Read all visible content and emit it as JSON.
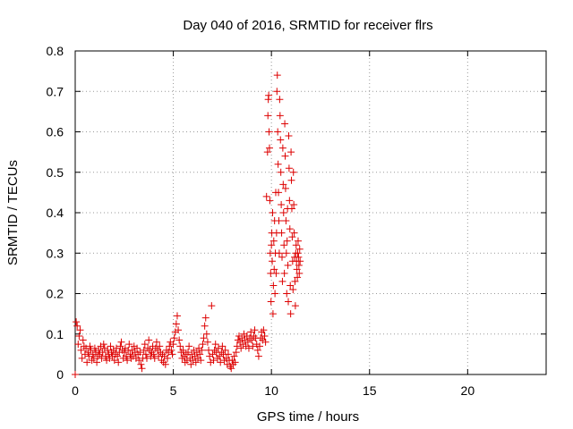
{
  "chart_data": {
    "type": "scatter",
    "title": "Day 040 of 2016, SRMTID for receiver flrs",
    "xlabel": "GPS time / hours",
    "ylabel": "SRMTID / TECUs",
    "xlim": [
      0,
      24
    ],
    "ylim": [
      0,
      0.8
    ],
    "xticks": [
      0,
      5,
      10,
      15,
      20
    ],
    "yticks": [
      0,
      0.1,
      0.2,
      0.3,
      0.4,
      0.5,
      0.6,
      0.7,
      0.8
    ],
    "grid": true,
    "marker": "+",
    "color": "#dd0000",
    "series": [
      {
        "name": "SRMTID",
        "points": [
          [
            0.0,
            0.0
          ],
          [
            0.05,
            0.13
          ],
          [
            0.1,
            0.12
          ],
          [
            0.15,
            0.075
          ],
          [
            0.2,
            0.095
          ],
          [
            0.25,
            0.11
          ],
          [
            0.3,
            0.06
          ],
          [
            0.35,
            0.04
          ],
          [
            0.4,
            0.085
          ],
          [
            0.45,
            0.07
          ],
          [
            0.5,
            0.05
          ],
          [
            0.55,
            0.065
          ],
          [
            0.6,
            0.03
          ],
          [
            0.65,
            0.055
          ],
          [
            0.7,
            0.045
          ],
          [
            0.75,
            0.07
          ],
          [
            0.8,
            0.06
          ],
          [
            0.85,
            0.035
          ],
          [
            0.9,
            0.05
          ],
          [
            0.95,
            0.04
          ],
          [
            1.0,
            0.065
          ],
          [
            1.05,
            0.055
          ],
          [
            1.1,
            0.03
          ],
          [
            1.15,
            0.045
          ],
          [
            1.2,
            0.06
          ],
          [
            1.25,
            0.05
          ],
          [
            1.3,
            0.07
          ],
          [
            1.35,
            0.04
          ],
          [
            1.4,
            0.055
          ],
          [
            1.45,
            0.075
          ],
          [
            1.5,
            0.065
          ],
          [
            1.55,
            0.045
          ],
          [
            1.6,
            0.035
          ],
          [
            1.65,
            0.06
          ],
          [
            1.7,
            0.05
          ],
          [
            1.75,
            0.04
          ],
          [
            1.8,
            0.07
          ],
          [
            1.85,
            0.055
          ],
          [
            1.9,
            0.045
          ],
          [
            1.95,
            0.06
          ],
          [
            2.0,
            0.035
          ],
          [
            2.05,
            0.05
          ],
          [
            2.1,
            0.065
          ],
          [
            2.15,
            0.045
          ],
          [
            2.2,
            0.03
          ],
          [
            2.25,
            0.055
          ],
          [
            2.3,
            0.07
          ],
          [
            2.35,
            0.08
          ],
          [
            2.4,
            0.06
          ],
          [
            2.45,
            0.04
          ],
          [
            2.5,
            0.055
          ],
          [
            2.55,
            0.065
          ],
          [
            2.6,
            0.045
          ],
          [
            2.65,
            0.035
          ],
          [
            2.7,
            0.06
          ],
          [
            2.75,
            0.075
          ],
          [
            2.8,
            0.05
          ],
          [
            2.85,
            0.04
          ],
          [
            2.9,
            0.06
          ],
          [
            2.95,
            0.045
          ],
          [
            3.0,
            0.07
          ],
          [
            3.05,
            0.055
          ],
          [
            3.1,
            0.04
          ],
          [
            3.15,
            0.065
          ],
          [
            3.2,
            0.05
          ],
          [
            3.25,
            0.035
          ],
          [
            3.3,
            0.055
          ],
          [
            3.35,
            0.025
          ],
          [
            3.4,
            0.015
          ],
          [
            3.45,
            0.04
          ],
          [
            3.5,
            0.06
          ],
          [
            3.55,
            0.075
          ],
          [
            3.6,
            0.05
          ],
          [
            3.65,
            0.04
          ],
          [
            3.7,
            0.065
          ],
          [
            3.75,
            0.085
          ],
          [
            3.8,
            0.06
          ],
          [
            3.85,
            0.045
          ],
          [
            3.9,
            0.055
          ],
          [
            3.95,
            0.07
          ],
          [
            4.0,
            0.05
          ],
          [
            4.05,
            0.04
          ],
          [
            4.1,
            0.065
          ],
          [
            4.15,
            0.08
          ],
          [
            4.2,
            0.06
          ],
          [
            4.25,
            0.045
          ],
          [
            4.3,
            0.07
          ],
          [
            4.35,
            0.055
          ],
          [
            4.4,
            0.035
          ],
          [
            4.45,
            0.05
          ],
          [
            4.5,
            0.03
          ],
          [
            4.55,
            0.045
          ],
          [
            4.6,
            0.025
          ],
          [
            4.65,
            0.06
          ],
          [
            4.7,
            0.04
          ],
          [
            4.75,
            0.055
          ],
          [
            4.8,
            0.07
          ],
          [
            4.85,
            0.08
          ],
          [
            4.9,
            0.06
          ],
          [
            4.95,
            0.05
          ],
          [
            5.0,
            0.075
          ],
          [
            5.05,
            0.09
          ],
          [
            5.1,
            0.105
          ],
          [
            5.15,
            0.125
          ],
          [
            5.2,
            0.145
          ],
          [
            5.25,
            0.11
          ],
          [
            5.3,
            0.085
          ],
          [
            5.35,
            0.07
          ],
          [
            5.4,
            0.055
          ],
          [
            5.45,
            0.04
          ],
          [
            5.5,
            0.06
          ],
          [
            5.55,
            0.045
          ],
          [
            5.6,
            0.03
          ],
          [
            5.65,
            0.05
          ],
          [
            5.7,
            0.035
          ],
          [
            5.75,
            0.055
          ],
          [
            5.8,
            0.07
          ],
          [
            5.85,
            0.04
          ],
          [
            5.9,
            0.025
          ],
          [
            5.95,
            0.05
          ],
          [
            6.0,
            0.035
          ],
          [
            6.05,
            0.06
          ],
          [
            6.1,
            0.045
          ],
          [
            6.15,
            0.03
          ],
          [
            6.2,
            0.055
          ],
          [
            6.25,
            0.04
          ],
          [
            6.3,
            0.065
          ],
          [
            6.35,
            0.05
          ],
          [
            6.4,
            0.035
          ],
          [
            6.45,
            0.06
          ],
          [
            6.5,
            0.075
          ],
          [
            6.55,
            0.09
          ],
          [
            6.6,
            0.12
          ],
          [
            6.65,
            0.14
          ],
          [
            6.7,
            0.1
          ],
          [
            6.75,
            0.08
          ],
          [
            6.8,
            0.06
          ],
          [
            6.85,
            0.045
          ],
          [
            6.9,
            0.03
          ],
          [
            6.95,
            0.17
          ],
          [
            7.0,
            0.05
          ],
          [
            7.05,
            0.035
          ],
          [
            7.1,
            0.06
          ],
          [
            7.15,
            0.075
          ],
          [
            7.2,
            0.055
          ],
          [
            7.25,
            0.04
          ],
          [
            7.3,
            0.065
          ],
          [
            7.35,
            0.045
          ],
          [
            7.4,
            0.03
          ],
          [
            7.45,
            0.055
          ],
          [
            7.5,
            0.07
          ],
          [
            7.55,
            0.05
          ],
          [
            7.6,
            0.035
          ],
          [
            7.65,
            0.06
          ],
          [
            7.7,
            0.04
          ],
          [
            7.75,
            0.025
          ],
          [
            7.8,
            0.05
          ],
          [
            7.85,
            0.035
          ],
          [
            7.9,
            0.02
          ],
          [
            7.95,
            0.015
          ],
          [
            8.0,
            0.035
          ],
          [
            8.05,
            0.025
          ],
          [
            8.1,
            0.045
          ],
          [
            8.15,
            0.03
          ],
          [
            8.2,
            0.055
          ],
          [
            8.25,
            0.07
          ],
          [
            8.3,
            0.085
          ],
          [
            8.35,
            0.095
          ],
          [
            8.4,
            0.08
          ],
          [
            8.45,
            0.065
          ],
          [
            8.5,
            0.09
          ],
          [
            8.55,
            0.075
          ],
          [
            8.6,
            0.1
          ],
          [
            8.65,
            0.085
          ],
          [
            8.7,
            0.07
          ],
          [
            8.75,
            0.095
          ],
          [
            8.8,
            0.08
          ],
          [
            8.85,
            0.065
          ],
          [
            8.9,
            0.09
          ],
          [
            8.95,
            0.105
          ],
          [
            9.0,
            0.085
          ],
          [
            9.05,
            0.07
          ],
          [
            9.1,
            0.095
          ],
          [
            9.15,
            0.11
          ],
          [
            9.2,
            0.09
          ],
          [
            9.25,
            0.075
          ],
          [
            9.3,
            0.06
          ],
          [
            9.35,
            0.045
          ],
          [
            9.4,
            0.07
          ],
          [
            9.45,
            0.09
          ],
          [
            9.5,
            0.105
          ],
          [
            9.55,
            0.085
          ],
          [
            9.6,
            0.11
          ],
          [
            9.65,
            0.095
          ],
          [
            9.7,
            0.08
          ],
          [
            9.75,
            0.44
          ],
          [
            9.8,
            0.55
          ],
          [
            9.82,
            0.64
          ],
          [
            9.84,
            0.68
          ],
          [
            9.86,
            0.69
          ],
          [
            9.88,
            0.6
          ],
          [
            9.9,
            0.56
          ],
          [
            9.92,
            0.43
          ],
          [
            9.94,
            0.3
          ],
          [
            9.96,
            0.25
          ],
          [
            9.98,
            0.18
          ],
          [
            10.0,
            0.32
          ],
          [
            10.02,
            0.35
          ],
          [
            10.04,
            0.28
          ],
          [
            10.06,
            0.4
          ],
          [
            10.08,
            0.15
          ],
          [
            10.1,
            0.22
          ],
          [
            10.12,
            0.33
          ],
          [
            10.14,
            0.26
          ],
          [
            10.16,
            0.38
          ],
          [
            10.18,
            0.2
          ],
          [
            10.2,
            0.3
          ],
          [
            10.22,
            0.45
          ],
          [
            10.24,
            0.25
          ],
          [
            10.26,
            0.35
          ],
          [
            10.28,
            0.7
          ],
          [
            10.3,
            0.74
          ],
          [
            10.32,
            0.6
          ],
          [
            10.34,
            0.52
          ],
          [
            10.36,
            0.45
          ],
          [
            10.38,
            0.38
          ],
          [
            10.4,
            0.3
          ],
          [
            10.42,
            0.68
          ],
          [
            10.44,
            0.64
          ],
          [
            10.46,
            0.58
          ],
          [
            10.48,
            0.5
          ],
          [
            10.5,
            0.42
          ],
          [
            10.52,
            0.35
          ],
          [
            10.54,
            0.29
          ],
          [
            10.56,
            0.23
          ],
          [
            10.58,
            0.56
          ],
          [
            10.6,
            0.47
          ],
          [
            10.62,
            0.4
          ],
          [
            10.64,
            0.32
          ],
          [
            10.66,
            0.25
          ],
          [
            10.68,
            0.62
          ],
          [
            10.7,
            0.54
          ],
          [
            10.72,
            0.46
          ],
          [
            10.74,
            0.38
          ],
          [
            10.76,
            0.3
          ],
          [
            10.78,
            0.2
          ],
          [
            10.8,
            0.33
          ],
          [
            10.82,
            0.41
          ],
          [
            10.84,
            0.27
          ],
          [
            10.86,
            0.18
          ],
          [
            10.88,
            0.59
          ],
          [
            10.9,
            0.51
          ],
          [
            10.92,
            0.43
          ],
          [
            10.94,
            0.36
          ],
          [
            10.96,
            0.22
          ],
          [
            10.98,
            0.15
          ],
          [
            11.0,
            0.55
          ],
          [
            11.02,
            0.48
          ],
          [
            11.04,
            0.41
          ],
          [
            11.06,
            0.34
          ],
          [
            11.08,
            0.28
          ],
          [
            11.1,
            0.21
          ],
          [
            11.12,
            0.5
          ],
          [
            11.14,
            0.42
          ],
          [
            11.16,
            0.35
          ],
          [
            11.18,
            0.29
          ],
          [
            11.2,
            0.23
          ],
          [
            11.22,
            0.17
          ],
          [
            11.24,
            0.3
          ],
          [
            11.26,
            0.32
          ],
          [
            11.28,
            0.28
          ],
          [
            11.3,
            0.26
          ],
          [
            11.32,
            0.24
          ],
          [
            11.34,
            0.3
          ],
          [
            11.36,
            0.33
          ],
          [
            11.38,
            0.29
          ],
          [
            11.4,
            0.27
          ],
          [
            11.42,
            0.25
          ],
          [
            11.44,
            0.31
          ],
          [
            11.46,
            0.28
          ]
        ]
      }
    ]
  }
}
